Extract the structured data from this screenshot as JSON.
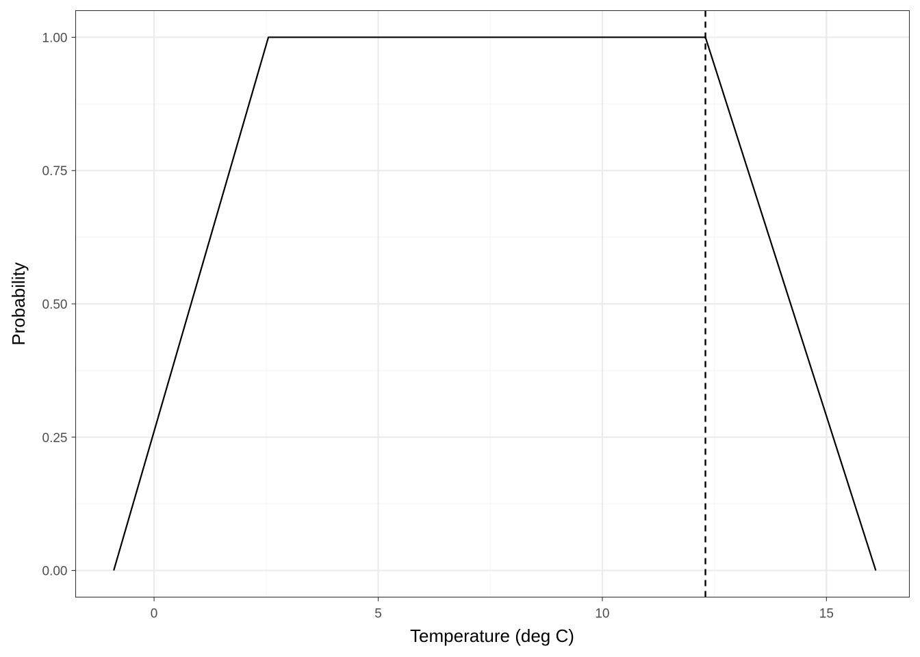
{
  "chart_data": {
    "type": "line",
    "title": "",
    "xlabel": "Temperature (deg C)",
    "ylabel": "Probability",
    "xlim": [
      -1.75,
      16.85
    ],
    "ylim": [
      -0.05,
      1.05
    ],
    "x_ticks": [
      0,
      5,
      10,
      15
    ],
    "x_tick_labels": [
      "0",
      "5",
      "10",
      "15"
    ],
    "x_minor_ticks": [
      2.5,
      7.5,
      12.5
    ],
    "y_ticks": [
      0,
      0.25,
      0.5,
      0.75,
      1
    ],
    "y_tick_labels": [
      "0.00",
      "0.25",
      "0.50",
      "0.75",
      "1.00"
    ],
    "y_minor_ticks": [
      0.125,
      0.375,
      0.625,
      0.875
    ],
    "grid": true,
    "legend": "none",
    "series": [
      {
        "x": [
          -0.9,
          2.55,
          12.3,
          16.1
        ],
        "y": [
          0,
          1,
          1,
          0
        ],
        "color": "#000000",
        "style": "solid"
      }
    ],
    "vlines": [
      {
        "x": 12.3,
        "color": "#000000",
        "style": "dashed"
      }
    ],
    "colors": {
      "panel_border": "#333333",
      "grid_major": "#ebebeb",
      "grid_minor": "#f5f5f5",
      "tick_label": "#4d4d4d"
    }
  }
}
